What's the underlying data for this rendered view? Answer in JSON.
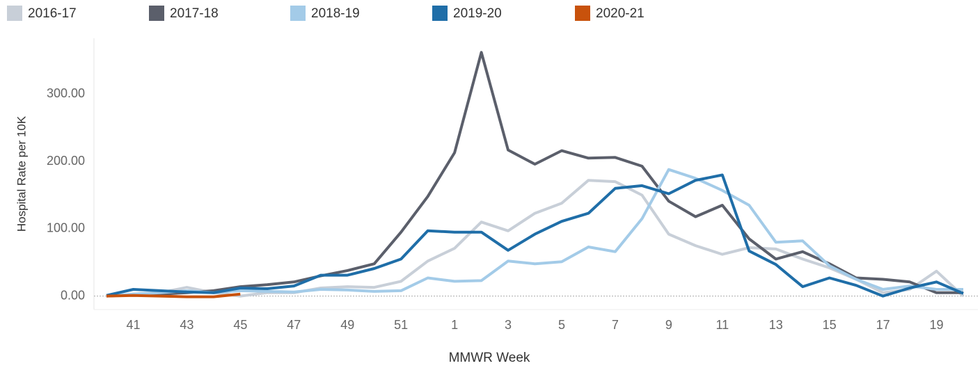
{
  "chart_data": {
    "type": "line",
    "x_label": "MMWR Week",
    "y_label": "Hospital Rate per 10K",
    "categories": [
      null,
      "41",
      null,
      "43",
      null,
      "45",
      null,
      "47",
      null,
      "49",
      null,
      "51",
      null,
      "1",
      null,
      "3",
      null,
      "5",
      null,
      "7",
      null,
      "9",
      null,
      "11",
      null,
      "13",
      null,
      "15",
      null,
      "17",
      null,
      "19",
      null
    ],
    "ylim": [
      -20,
      383
    ],
    "yticks": [
      {
        "value": 0,
        "label": "0.00"
      },
      {
        "value": 100,
        "label": "100.00"
      },
      {
        "value": 200,
        "label": "200.00"
      },
      {
        "value": 300,
        "label": "300.00"
      }
    ],
    "legend": "top",
    "series": [
      {
        "name": "2016-17",
        "color": "#c8cfd8",
        "values": [
          0,
          3,
          5,
          13,
          5,
          0,
          5,
          5,
          12,
          14,
          13,
          22,
          52,
          71,
          110,
          97,
          123,
          138,
          172,
          170,
          150,
          92,
          75,
          62,
          72,
          70,
          55,
          42,
          25,
          5,
          10,
          37,
          0
        ]
      },
      {
        "name": "2017-18",
        "color": "#5b5f6b",
        "values": [
          0,
          2,
          3,
          5,
          8,
          14,
          17,
          21,
          30,
          38,
          48,
          95,
          148,
          213,
          362,
          217,
          196,
          216,
          205,
          206,
          193,
          141,
          118,
          135,
          85,
          55,
          66,
          48,
          27,
          25,
          21,
          5,
          5
        ]
      },
      {
        "name": "2018-19",
        "color": "#a3cbe8",
        "values": [
          0,
          3,
          5,
          8,
          5,
          8,
          7,
          6,
          10,
          9,
          7,
          8,
          27,
          22,
          23,
          52,
          48,
          51,
          73,
          66,
          115,
          188,
          175,
          157,
          135,
          80,
          82,
          45,
          25,
          10,
          15,
          10,
          10
        ]
      },
      {
        "name": "2019-20",
        "color": "#1f6ea8",
        "values": [
          1,
          10,
          8,
          6,
          5,
          12,
          11,
          15,
          31,
          31,
          41,
          55,
          97,
          95,
          95,
          68,
          92,
          111,
          123,
          160,
          164,
          152,
          172,
          180,
          67,
          47,
          14,
          27,
          16,
          0,
          12,
          21,
          4
        ]
      },
      {
        "name": "2020-21",
        "color": "#c8520c",
        "values": [
          0,
          1,
          0,
          -1,
          -1,
          3,
          null,
          null,
          null,
          null,
          null,
          null,
          null,
          null,
          null,
          null,
          null,
          null,
          null,
          null,
          null,
          null,
          null,
          null,
          null,
          null,
          null,
          null,
          null,
          null,
          null,
          null,
          null
        ]
      }
    ]
  }
}
